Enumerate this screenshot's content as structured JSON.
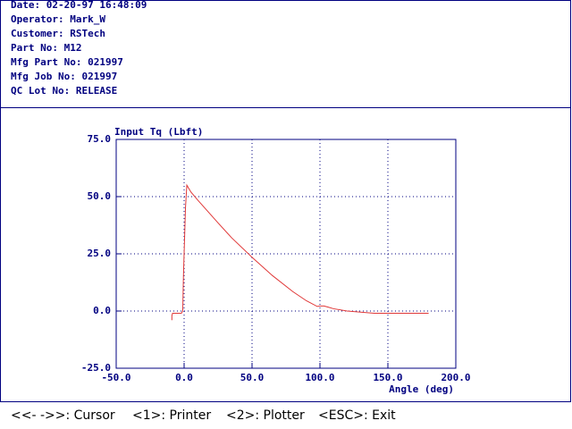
{
  "header": {
    "lines": [
      "Date: 02-20-97 16:48:09",
      "Operator: Mark_W",
      "Customer: RSTech",
      "Part No: M12",
      "Mfg Part No: 021997",
      "Mfg Job No: 021997",
      "QC Lot No: RELEASE"
    ]
  },
  "chart_data": {
    "type": "line",
    "y_label": "Input Tq (Lbft)",
    "x_label": "Angle (deg)",
    "x": [
      -9,
      -9,
      -8.5,
      -2,
      -1,
      -0.5,
      1,
      2,
      5,
      10,
      16,
      25,
      35,
      50,
      65,
      80,
      90,
      98,
      100,
      103,
      106,
      110,
      120,
      130,
      140,
      160,
      180
    ],
    "values": [
      -4,
      -2,
      -1,
      -1,
      0,
      15,
      45,
      55,
      52,
      48.5,
      44.5,
      38.5,
      32,
      23.5,
      15.5,
      8.5,
      4.5,
      2,
      2.2,
      2.2,
      1.7,
      1,
      0,
      -0.5,
      -1,
      -1,
      -1
    ],
    "color": "#e03838",
    "xlim": [
      -50,
      200
    ],
    "ylim": [
      -25,
      75
    ],
    "xticks": [
      {
        "value": -50,
        "label": "-50.0"
      },
      {
        "value": 0,
        "label": "0.0"
      },
      {
        "value": 50,
        "label": "50.0"
      },
      {
        "value": 100,
        "label": "100.0"
      },
      {
        "value": 150,
        "label": "150.0"
      },
      {
        "value": 200,
        "label": "200.0"
      }
    ],
    "yticks": [
      {
        "value": -25,
        "label": "-25.0"
      },
      {
        "value": 0,
        "label": "0.0"
      },
      {
        "value": 25,
        "label": "25.0"
      },
      {
        "value": 50,
        "label": "50.0"
      },
      {
        "value": 75,
        "label": "75.0"
      }
    ],
    "grid": true
  },
  "footer": {
    "keys": [
      "<<- ->>: Cursor",
      "<1>: Printer",
      "<2>: Plotter",
      "<ESC>: Exit"
    ]
  }
}
